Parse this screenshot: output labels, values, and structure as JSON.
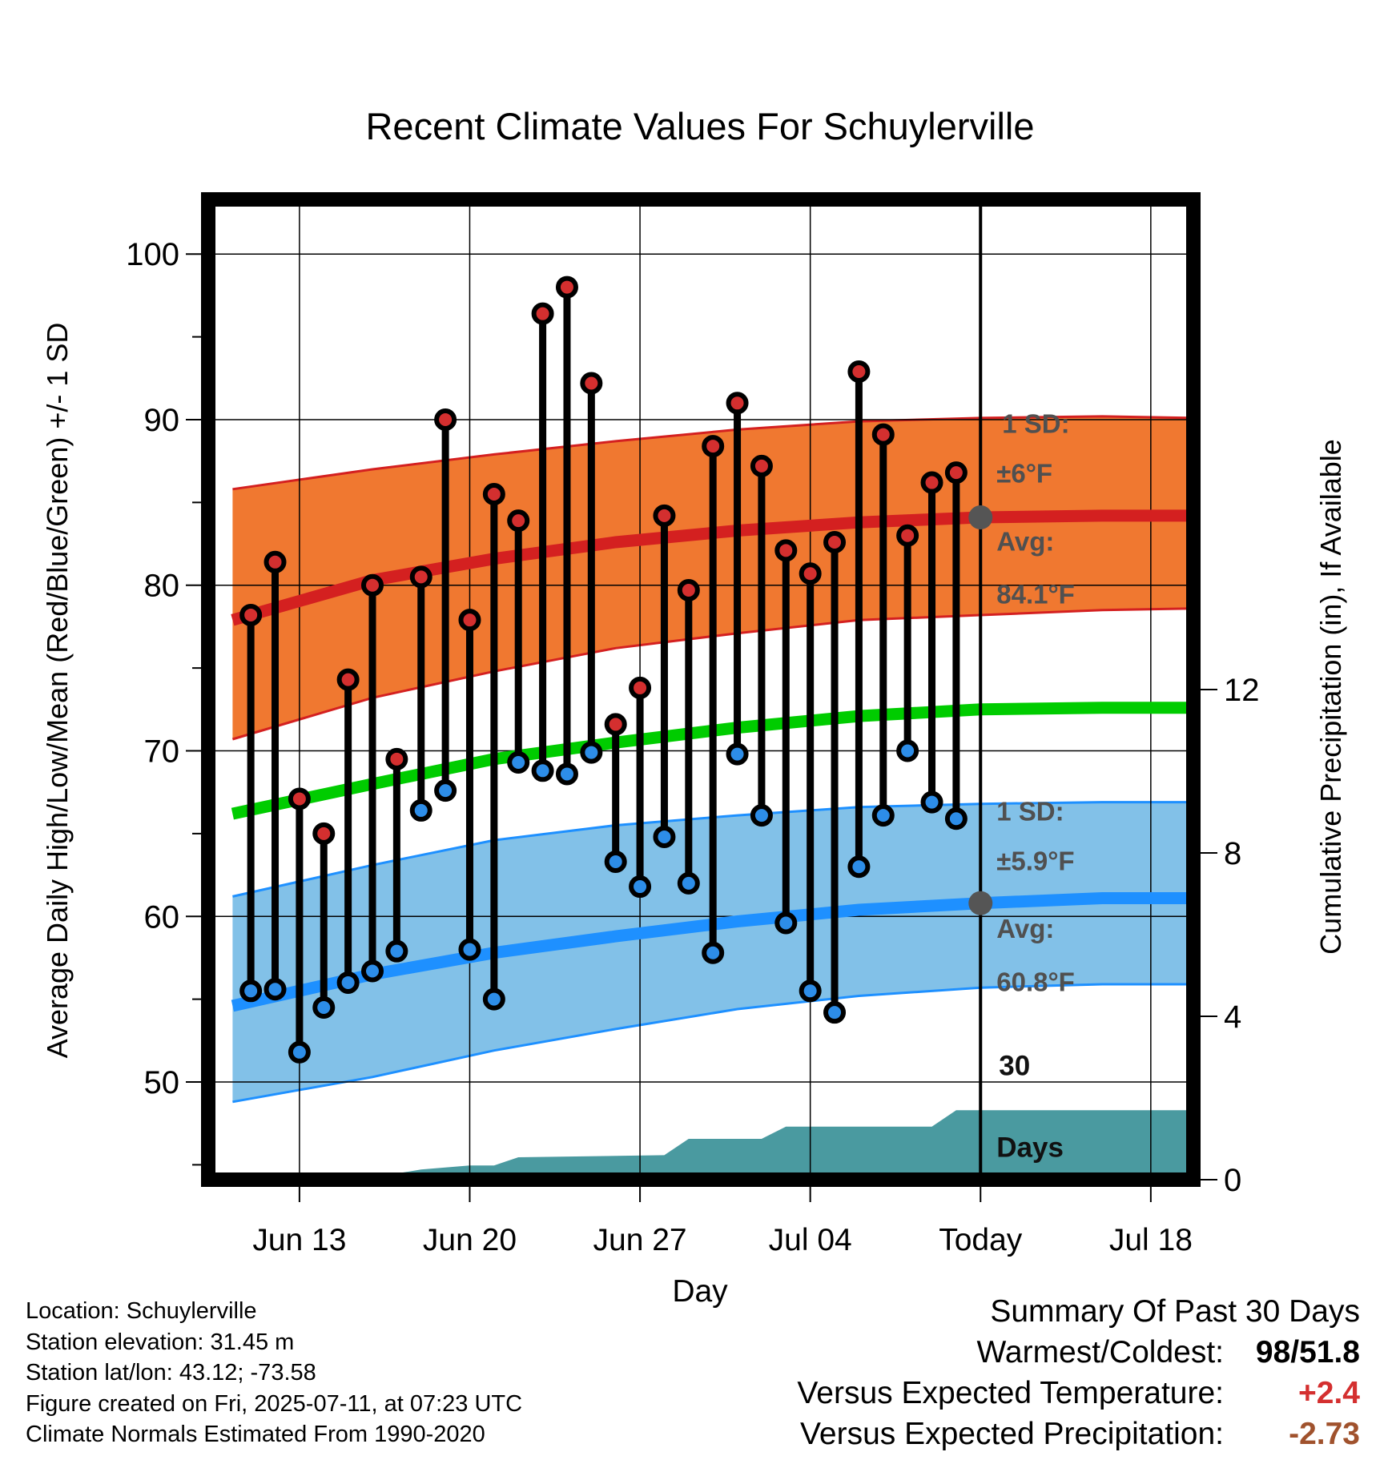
{
  "chart_data": {
    "type": "line",
    "title": "Recent Climate Values For Schuylerville",
    "xlabel": "Day",
    "ylabel": "Average Daily High/Low/Mean (Red/Blue/Green) +/- 1 SD",
    "y2label": "Cumulative Precipitation (in), If Available",
    "x_tick_labels": [
      "Jun 13",
      "Jun 20",
      "Jun 27",
      "Jul 04",
      "Today",
      "Jul 18"
    ],
    "x_tick_days": [
      2,
      9,
      16,
      23,
      30,
      37
    ],
    "y_ticks": [
      50,
      60,
      70,
      80,
      90,
      100
    ],
    "y2_ticks": [
      0,
      4,
      8,
      12
    ],
    "ylim": [
      44.1,
      103.3
    ],
    "y2lim": [
      0,
      24
    ],
    "xlim": [
      -1.75,
      38.75
    ],
    "day0_label": "Jun 11",
    "days": [
      0,
      1,
      2,
      3,
      4,
      5,
      6,
      7,
      8,
      9,
      10,
      11,
      12,
      13,
      14,
      15,
      16,
      17,
      18,
      19,
      20,
      21,
      22,
      23,
      24,
      25,
      26,
      27,
      28,
      29
    ],
    "highs": [
      78.2,
      81.4,
      67.1,
      65.0,
      74.3,
      80.0,
      69.5,
      80.5,
      90.0,
      77.9,
      85.5,
      83.9,
      96.4,
      98.0,
      92.2,
      71.6,
      73.8,
      84.2,
      79.7,
      88.4,
      91.0,
      87.2,
      82.1,
      80.7,
      82.6,
      92.9,
      89.1,
      83.0,
      86.2,
      86.8
    ],
    "lows": [
      55.5,
      55.6,
      51.8,
      54.5,
      56.0,
      56.7,
      57.9,
      66.4,
      67.6,
      58.0,
      55.0,
      69.3,
      68.8,
      68.6,
      69.9,
      63.3,
      61.8,
      64.8,
      62.0,
      57.8,
      69.8,
      66.1,
      59.6,
      55.5,
      54.2,
      63.0,
      66.1,
      70.0,
      66.9,
      65.9
    ],
    "normal_high": {
      "days": [
        -0.75,
        5,
        10,
        15,
        20,
        25,
        30,
        35,
        38.75
      ],
      "avg": [
        77.9,
        80.3,
        81.6,
        82.6,
        83.3,
        83.8,
        84.1,
        84.2,
        84.2
      ],
      "sd_upper": [
        85.8,
        87.0,
        87.9,
        88.7,
        89.4,
        89.9,
        90.1,
        90.2,
        90.1
      ],
      "sd_lower": [
        70.7,
        73.2,
        74.8,
        76.2,
        77.1,
        77.9,
        78.2,
        78.5,
        78.6
      ]
    },
    "normal_mean": {
      "days": [
        -0.75,
        5,
        10,
        15,
        20,
        25,
        30,
        35,
        38.75
      ],
      "avg": [
        66.2,
        68.0,
        69.5,
        70.5,
        71.4,
        72.1,
        72.5,
        72.6,
        72.6
      ]
    },
    "normal_low": {
      "days": [
        -0.75,
        5,
        10,
        15,
        20,
        25,
        30,
        35,
        38.75
      ],
      "avg": [
        54.6,
        56.5,
        57.8,
        58.8,
        59.7,
        60.4,
        60.8,
        61.1,
        61.1
      ],
      "sd_upper": [
        61.2,
        63.1,
        64.6,
        65.5,
        66.1,
        66.6,
        66.8,
        66.9,
        66.9
      ],
      "sd_lower": [
        48.8,
        50.3,
        51.9,
        53.2,
        54.4,
        55.2,
        55.7,
        55.9,
        55.9
      ]
    },
    "cumulative_precip": {
      "days": [
        -0.75,
        5,
        6,
        7,
        8,
        9,
        10,
        11,
        17,
        18,
        21,
        22,
        28,
        29,
        38.75
      ],
      "values": [
        0,
        0,
        0.15,
        0.25,
        0.3,
        0.35,
        0.35,
        0.55,
        0.6,
        1.0,
        1.0,
        1.3,
        1.3,
        1.7,
        1.7
      ]
    },
    "today_day": 30,
    "annotations": {
      "high_sd": [
        "1 SD:",
        "±6°F"
      ],
      "high_avg": [
        "Avg:",
        "84.1°F"
      ],
      "low_sd": [
        "1 SD:",
        "±5.9°F"
      ],
      "low_avg": [
        "Avg:",
        "60.8°F"
      ],
      "precip_days": [
        "30",
        "Days"
      ],
      "high_avg_value": 84.1,
      "low_avg_value": 60.8
    },
    "colors": {
      "high_band": "#f07830",
      "high_line": "#d42020",
      "mean_line": "#00cc00",
      "low_band": "#82c1e8",
      "low_line": "#1e90ff",
      "precip": "#4a9aa0",
      "high_marker": "#d42f2f",
      "low_marker": "#2d8de8",
      "annotation_text": "#505050"
    }
  },
  "footer": {
    "location": "Location: Schuylerville",
    "elevation": "Station elevation: 31.45 m",
    "latlon": "Station lat/lon: 43.12; -73.58",
    "created": "Figure created on Fri, 2025-07-11, at 07:23 UTC",
    "normals": "Climate Normals Estimated From 1990-2020"
  },
  "summary": {
    "heading": "Summary Of Past 30 Days",
    "warmest_label": "Warmest/Coldest:",
    "warmest_value": "98/51.8",
    "temp_label": "Versus Expected Temperature:",
    "temp_value": "+2.4",
    "precip_label": "Versus Expected Precipitation:",
    "precip_value": "-2.73"
  }
}
